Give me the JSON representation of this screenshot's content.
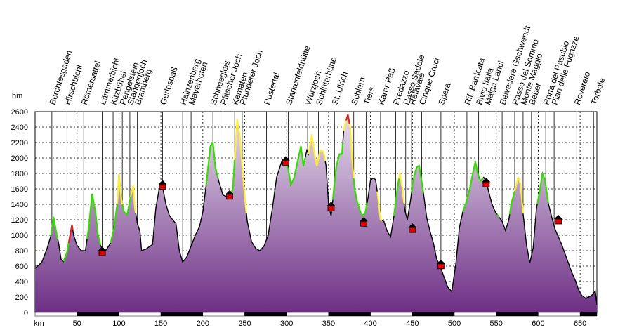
{
  "chart_data": {
    "type": "area",
    "title": "",
    "xlabel": "km",
    "ylabel": "hm",
    "xlim": [
      0,
      670
    ],
    "ylim": [
      0,
      2600
    ],
    "xticks": [
      50,
      100,
      150,
      200,
      250,
      300,
      350,
      400,
      450,
      500,
      550,
      600,
      650
    ],
    "yticks": [
      0,
      200,
      400,
      600,
      800,
      1000,
      1200,
      1400,
      1600,
      1800,
      2000,
      2200,
      2400,
      2600
    ],
    "grid": true,
    "colors": {
      "fill_top": "#d9c6e2",
      "fill_bottom": "#7a3f90",
      "outline": "#000000",
      "segment_green": "#33dd00",
      "segment_yellow": "#ffee33",
      "segment_red": "#dd2222",
      "marker": "#e00000"
    },
    "series": [
      {
        "values": [
          [
            0,
            570
          ],
          [
            8,
            650
          ],
          [
            14,
            820
          ],
          [
            19,
            1000
          ],
          [
            22,
            1230
          ],
          [
            25,
            1050
          ],
          [
            28,
            900
          ],
          [
            31,
            690
          ],
          [
            34,
            660
          ],
          [
            38,
            780
          ],
          [
            41,
            960
          ],
          [
            44,
            1130
          ],
          [
            46,
            1000
          ],
          [
            50,
            870
          ],
          [
            55,
            800
          ],
          [
            60,
            800
          ],
          [
            64,
            1100
          ],
          [
            68,
            1530
          ],
          [
            72,
            1300
          ],
          [
            75,
            1000
          ],
          [
            78,
            870
          ],
          [
            82,
            780
          ],
          [
            86,
            830
          ],
          [
            90,
            900
          ],
          [
            94,
            1080
          ],
          [
            98,
            1400
          ],
          [
            100,
            1780
          ],
          [
            103,
            1450
          ],
          [
            106,
            1300
          ],
          [
            110,
            1270
          ],
          [
            114,
            1500
          ],
          [
            117,
            1640
          ],
          [
            119,
            1350
          ],
          [
            122,
            1150
          ],
          [
            125,
            1050
          ],
          [
            127,
            800
          ],
          [
            132,
            820
          ],
          [
            140,
            880
          ],
          [
            144,
            1350
          ],
          [
            148,
            1600
          ],
          [
            152,
            1620
          ],
          [
            156,
            1400
          ],
          [
            160,
            1260
          ],
          [
            164,
            1200
          ],
          [
            168,
            1150
          ],
          [
            172,
            800
          ],
          [
            176,
            650
          ],
          [
            181,
            720
          ],
          [
            186,
            860
          ],
          [
            191,
            1000
          ],
          [
            196,
            1110
          ],
          [
            200,
            1300
          ],
          [
            204,
            1650
          ],
          [
            209,
            2150
          ],
          [
            212,
            2200
          ],
          [
            215,
            1880
          ],
          [
            219,
            1700
          ],
          [
            224,
            1520
          ],
          [
            229,
            1500
          ],
          [
            233,
            1500
          ],
          [
            236,
            1620
          ],
          [
            239,
            2150
          ],
          [
            241,
            2500
          ],
          [
            244,
            2300
          ],
          [
            247,
            1900
          ],
          [
            250,
            1500
          ],
          [
            253,
            1180
          ],
          [
            258,
            920
          ],
          [
            263,
            830
          ],
          [
            268,
            800
          ],
          [
            273,
            860
          ],
          [
            278,
            1000
          ],
          [
            283,
            1350
          ],
          [
            288,
            1750
          ],
          [
            294,
            1950
          ],
          [
            298,
            1960
          ],
          [
            302,
            1850
          ],
          [
            305,
            1650
          ],
          [
            309,
            1750
          ],
          [
            313,
            1950
          ],
          [
            317,
            2150
          ],
          [
            320,
            1900
          ],
          [
            324,
            2100
          ],
          [
            326,
            2050
          ],
          [
            330,
            2300
          ],
          [
            334,
            2000
          ],
          [
            336,
            1900
          ],
          [
            340,
            2100
          ],
          [
            344,
            2080
          ],
          [
            347,
            1900
          ],
          [
            350,
            1400
          ],
          [
            353,
            1250
          ],
          [
            356,
            1560
          ],
          [
            359,
            1880
          ],
          [
            363,
            2050
          ],
          [
            366,
            2050
          ],
          [
            368,
            2350
          ],
          [
            370,
            2450
          ],
          [
            373,
            2560
          ],
          [
            376,
            2380
          ],
          [
            378,
            2000
          ],
          [
            381,
            1600
          ],
          [
            384,
            1440
          ],
          [
            388,
            1300
          ],
          [
            391,
            1250
          ],
          [
            394,
            1300
          ],
          [
            397,
            1480
          ],
          [
            400,
            1710
          ],
          [
            403,
            1740
          ],
          [
            406,
            1720
          ],
          [
            409,
            1490
          ],
          [
            412,
            1200
          ],
          [
            416,
            1180
          ],
          [
            420,
            1050
          ],
          [
            424,
            980
          ],
          [
            428,
            1250
          ],
          [
            432,
            1600
          ],
          [
            435,
            1800
          ],
          [
            438,
            1600
          ],
          [
            441,
            1320
          ],
          [
            444,
            1200
          ],
          [
            448,
            1470
          ],
          [
            451,
            1720
          ],
          [
            455,
            1880
          ],
          [
            458,
            1900
          ],
          [
            461,
            1700
          ],
          [
            464,
            1480
          ],
          [
            467,
            1230
          ],
          [
            471,
            1050
          ],
          [
            475,
            900
          ],
          [
            479,
            690
          ],
          [
            483,
            600
          ],
          [
            487,
            480
          ],
          [
            492,
            330
          ],
          [
            497,
            270
          ],
          [
            502,
            650
          ],
          [
            506,
            1100
          ],
          [
            510,
            1300
          ],
          [
            514,
            1420
          ],
          [
            518,
            1580
          ],
          [
            522,
            1800
          ],
          [
            525,
            1950
          ],
          [
            528,
            1800
          ],
          [
            531,
            1700
          ],
          [
            535,
            1750
          ],
          [
            538,
            1700
          ],
          [
            541,
            1560
          ],
          [
            545,
            1400
          ],
          [
            549,
            1300
          ],
          [
            553,
            1240
          ],
          [
            557,
            1180
          ],
          [
            561,
            1060
          ],
          [
            565,
            1200
          ],
          [
            568,
            1410
          ],
          [
            572,
            1570
          ],
          [
            576,
            1750
          ],
          [
            579,
            1660
          ],
          [
            582,
            1280
          ],
          [
            586,
            880
          ],
          [
            590,
            640
          ],
          [
            594,
            840
          ],
          [
            598,
            1350
          ],
          [
            602,
            1580
          ],
          [
            605,
            1800
          ],
          [
            608,
            1720
          ],
          [
            612,
            1420
          ],
          [
            616,
            1240
          ],
          [
            620,
            1080
          ],
          [
            624,
            980
          ],
          [
            628,
            880
          ],
          [
            632,
            760
          ],
          [
            636,
            640
          ],
          [
            640,
            520
          ],
          [
            644,
            420
          ],
          [
            648,
            300
          ],
          [
            652,
            220
          ],
          [
            657,
            180
          ],
          [
            662,
            210
          ],
          [
            666,
            240
          ],
          [
            668,
            280
          ],
          [
            670,
            100
          ]
        ]
      }
    ],
    "segments": [
      {
        "color": "green",
        "x": [
          19,
          27
        ]
      },
      {
        "color": "red",
        "x": [
          40,
          45
        ]
      },
      {
        "color": "green",
        "x": [
          34,
          40
        ]
      },
      {
        "color": "green",
        "x": [
          62,
          78
        ]
      },
      {
        "color": "green",
        "x": [
          90,
          117
        ]
      },
      {
        "color": "yellow",
        "x": [
          98,
          104
        ]
      },
      {
        "color": "yellow",
        "x": [
          114,
          120
        ]
      },
      {
        "color": "green",
        "x": [
          204,
          218
        ]
      },
      {
        "color": "yellow",
        "x": [
          236,
          252
        ]
      },
      {
        "color": "green",
        "x": [
          234,
          238
        ]
      },
      {
        "color": "green",
        "x": [
          300,
          322
        ]
      },
      {
        "color": "yellow",
        "x": [
          326,
          346
        ]
      },
      {
        "color": "green",
        "x": [
          355,
          367
        ]
      },
      {
        "color": "yellow",
        "x": [
          368,
          380
        ]
      },
      {
        "color": "red",
        "x": [
          371,
          375
        ]
      },
      {
        "color": "green",
        "x": [
          380,
          396
        ]
      },
      {
        "color": "yellow",
        "x": [
          408,
          414
        ]
      },
      {
        "color": "green",
        "x": [
          428,
          434
        ]
      },
      {
        "color": "yellow",
        "x": [
          434,
          440
        ]
      },
      {
        "color": "green",
        "x": [
          449,
          463
        ]
      },
      {
        "color": "green",
        "x": [
          510,
          534
        ]
      },
      {
        "color": "green",
        "x": [
          551,
          553
        ]
      },
      {
        "color": "yellow",
        "x": [
          570,
          582
        ]
      },
      {
        "color": "green",
        "x": [
          566,
          572
        ]
      },
      {
        "color": "green",
        "x": [
          599,
          612
        ]
      }
    ],
    "markers": [
      {
        "x": 80,
        "y": 790
      },
      {
        "x": 152,
        "y": 1650
      },
      {
        "x": 232,
        "y": 1520
      },
      {
        "x": 299,
        "y": 1960
      },
      {
        "x": 353,
        "y": 1370
      },
      {
        "x": 392,
        "y": 1170
      },
      {
        "x": 450,
        "y": 1090
      },
      {
        "x": 484,
        "y": 620
      },
      {
        "x": 538,
        "y": 1680
      },
      {
        "x": 624,
        "y": 1200
      }
    ],
    "labels": [
      {
        "x": 20,
        "text": "Berchtesgaden"
      },
      {
        "x": 38,
        "text": "Hirschbichl"
      },
      {
        "x": 58,
        "text": "Römersattel"
      },
      {
        "x": 80,
        "text": "Lämmerbichl"
      },
      {
        "x": 93,
        "text": "Kitzbühel"
      },
      {
        "x": 104,
        "text": "Pengelstein"
      },
      {
        "x": 113,
        "text": "Stangenjoch"
      },
      {
        "x": 122,
        "text": "Bramberg"
      },
      {
        "x": 152,
        "text": "Gerlospaß"
      },
      {
        "x": 176,
        "text": "Hainzenberg"
      },
      {
        "x": 186,
        "text": "Mayerhofen"
      },
      {
        "x": 212,
        "text": "Schneegleis"
      },
      {
        "x": 224,
        "text": "Pfitscher Joch"
      },
      {
        "x": 238,
        "text": "Kematen"
      },
      {
        "x": 247,
        "text": "Pfunderer Joch"
      },
      {
        "x": 276,
        "text": "Pustertal"
      },
      {
        "x": 302,
        "text": "Starkenfeldhütte"
      },
      {
        "x": 325,
        "text": "Würzjoch"
      },
      {
        "x": 338,
        "text": "Schlüterhütte"
      },
      {
        "x": 357,
        "text": "St. Ulrich"
      },
      {
        "x": 380,
        "text": "Schlern"
      },
      {
        "x": 395,
        "text": "Tiers"
      },
      {
        "x": 412,
        "text": "Karer Paß"
      },
      {
        "x": 430,
        "text": "Predazzo"
      },
      {
        "x": 442,
        "text": "Passo Sadole"
      },
      {
        "x": 449,
        "text": "Refavaie"
      },
      {
        "x": 461,
        "text": "Cinque Croci"
      },
      {
        "x": 484,
        "text": "Spera"
      },
      {
        "x": 515,
        "text": "Rif. Barricata"
      },
      {
        "x": 529,
        "text": "Bivio Italia"
      },
      {
        "x": 539,
        "text": "Malga Larici"
      },
      {
        "x": 557,
        "text": "Belvedere Gschwendt"
      },
      {
        "x": 572,
        "text": "Passo del Sommo"
      },
      {
        "x": 582,
        "text": "Monte Maggio"
      },
      {
        "x": 592,
        "text": "Beber"
      },
      {
        "x": 609,
        "text": "Porta del Pasubio"
      },
      {
        "x": 619,
        "text": "Pian delle Fugazze"
      },
      {
        "x": 646,
        "text": "Rovereto"
      },
      {
        "x": 666,
        "text": "Torbole"
      }
    ]
  }
}
